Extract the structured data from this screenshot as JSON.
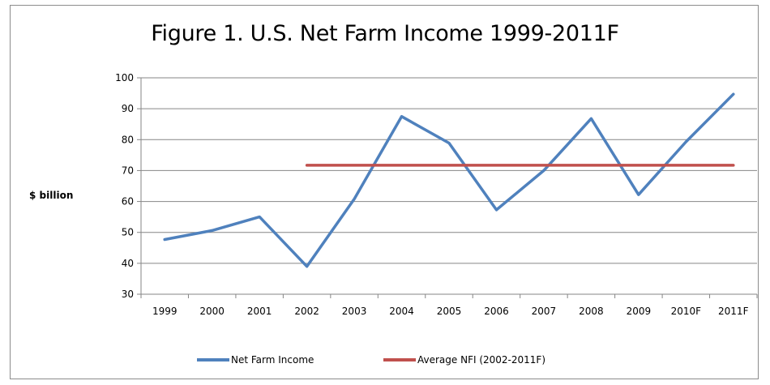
{
  "chart_data": {
    "type": "line",
    "title": "Figure 1. U.S. Net Farm Income 1999-2011F",
    "ylabel": "$ billion",
    "xlabel": "",
    "categories": [
      "1999",
      "2000",
      "2001",
      "2002",
      "2003",
      "2004",
      "2005",
      "2006",
      "2007",
      "2008",
      "2009",
      "2010F",
      "2011F"
    ],
    "ylim": [
      30,
      100
    ],
    "yticks": [
      30,
      40,
      50,
      60,
      70,
      80,
      90,
      100
    ],
    "grid": true,
    "legend_position": "bottom",
    "series": [
      {
        "name": "Net Farm Income",
        "color": "#4f81bd",
        "values": [
          47.7,
          50.6,
          55.0,
          39.0,
          60.8,
          87.5,
          78.9,
          57.3,
          70.0,
          86.8,
          62.2,
          79.3,
          94.7
        ]
      },
      {
        "name": "Average NFI (2002-2011F)",
        "color": "#c0504d",
        "values": [
          null,
          null,
          null,
          71.7,
          71.7,
          71.7,
          71.7,
          71.7,
          71.7,
          71.7,
          71.7,
          71.7,
          71.7
        ]
      }
    ]
  }
}
